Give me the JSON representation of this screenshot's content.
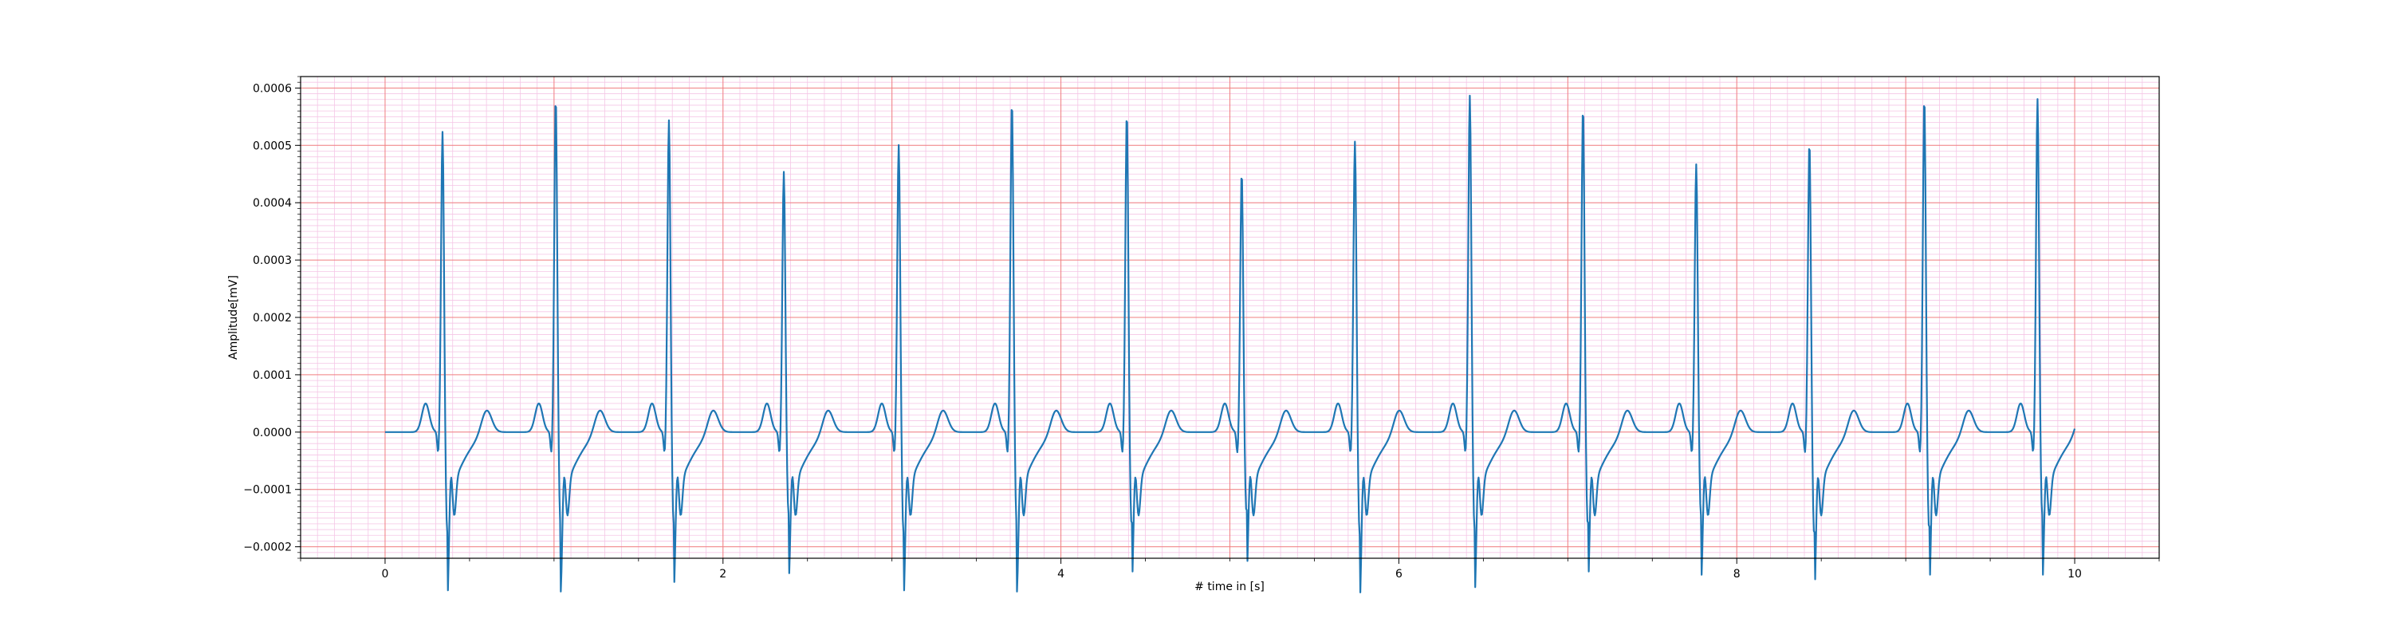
{
  "chart_data": {
    "type": "line",
    "title": "",
    "xlabel": "# time in [s]",
    "ylabel": "Amplitude[mV]",
    "xlim": [
      -0.5,
      10.5
    ],
    "ylim": [
      -0.00022,
      0.00062
    ],
    "x_ticks": [
      0,
      2,
      4,
      6,
      8,
      10
    ],
    "x_tick_labels": [
      "0",
      "2",
      "4",
      "6",
      "8",
      "10"
    ],
    "y_ticks": [
      -0.0002,
      -0.0001,
      0.0,
      0.0001,
      0.0002,
      0.0003,
      0.0004,
      0.0005,
      0.0006
    ],
    "y_tick_labels": [
      "−0.0002",
      "−0.0001",
      "0.0000",
      "0.0001",
      "0.0002",
      "0.0003",
      "0.0004",
      "0.0005",
      "0.0006"
    ],
    "grid": "major and minor (ECG paper style)",
    "colors": {
      "line": "#1f77b4",
      "major_grid": "#f08080",
      "minor_grid": "#f5c6e6"
    },
    "series": [
      {
        "beats": [
          {
            "r_time": 0.34,
            "r_peak": 0.000525,
            "s_min": -0.000178
          },
          {
            "r_time": 1.01,
            "r_peak": 0.000585,
            "s_min": -0.000165
          },
          {
            "r_time": 1.68,
            "r_peak": 0.000545,
            "s_min": -0.000162
          },
          {
            "r_time": 2.36,
            "r_peak": 0.000455,
            "s_min": -0.000145
          },
          {
            "r_time": 3.04,
            "r_peak": 0.000502,
            "s_min": -0.000178
          },
          {
            "r_time": 3.71,
            "r_peak": 0.000578,
            "s_min": -0.000165
          },
          {
            "r_time": 4.39,
            "r_peak": 0.000558,
            "s_min": -0.000165
          },
          {
            "r_time": 5.07,
            "r_peak": 0.000455,
            "s_min": -0.000142
          },
          {
            "r_time": 5.74,
            "r_peak": 0.000508,
            "s_min": -0.000182
          },
          {
            "r_time": 6.42,
            "r_peak": 0.000588,
            "s_min": -0.000172
          },
          {
            "r_time": 7.09,
            "r_peak": 0.000568,
            "s_min": -0.000165
          },
          {
            "r_time": 7.76,
            "r_peak": 0.000468,
            "s_min": -0.000148
          },
          {
            "r_time": 8.43,
            "r_peak": 0.000508,
            "s_min": -0.000182
          },
          {
            "r_time": 9.11,
            "r_peak": 0.000585,
            "s_min": -0.000172
          },
          {
            "r_time": 9.78,
            "r_peak": 0.000582,
            "s_min": -0.000148
          }
        ],
        "t_wave_peak": 4e-05,
        "p_wave_peak": 5e-05,
        "t_end": 10.0,
        "y_end": -1.5e-05
      }
    ]
  }
}
